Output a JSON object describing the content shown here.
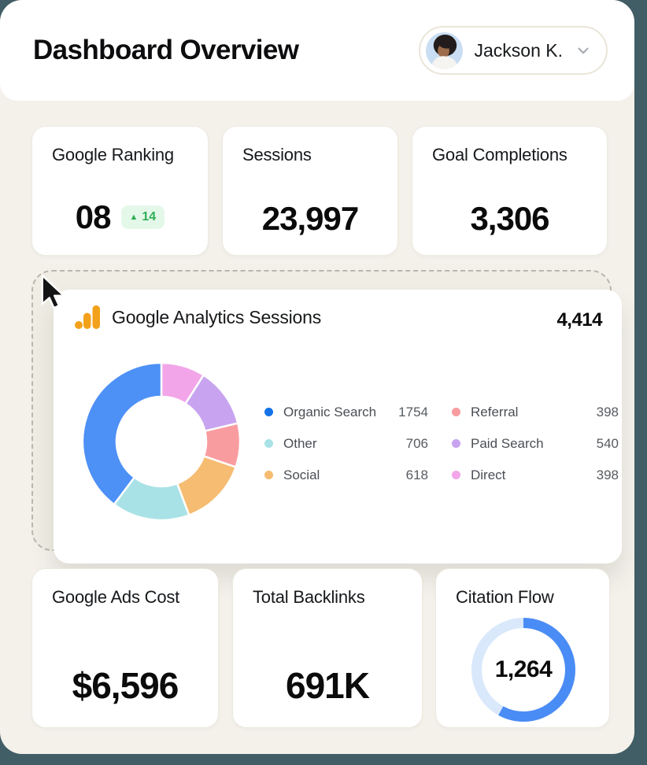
{
  "window": {
    "backdrop_color": "#415D66",
    "panel_bg": "#F3F1EA",
    "header_bg": "#FFFFFF"
  },
  "header": {
    "title": "Dashboard Overview",
    "user": {
      "name": "Jackson K."
    }
  },
  "stats": [
    {
      "label": "Google Ranking",
      "value": "08",
      "delta": {
        "direction": "up",
        "value": "14",
        "text_color": "#2FAE54",
        "bg_color": "#E4F8EA"
      }
    },
    {
      "label": "Sessions",
      "value": "23,997"
    },
    {
      "label": "Goal Completions",
      "value": "3,306"
    }
  ],
  "analytics_card": {
    "icon": "google-analytics-icon",
    "icon_color": "#F3A11B",
    "title": "Google Analytics Sessions",
    "total": "4,414"
  },
  "chart_data": [
    {
      "type": "pie",
      "subtype": "donut",
      "title": "Google Analytics Sessions",
      "total": 4414,
      "total_label": "4,414",
      "segments": [
        {
          "label": "Organic Search",
          "value": 1754,
          "color": "#4D90F6",
          "dot_color": "#1473E6"
        },
        {
          "label": "Other",
          "value": 706,
          "color": "#A9E2E6",
          "dot_color": "#A9E2E6"
        },
        {
          "label": "Social",
          "value": 618,
          "color": "#F6BC72",
          "dot_color": "#F6BC72"
        },
        {
          "label": "Referral",
          "value": 398,
          "color": "#F99CA0",
          "dot_color": "#F99CA0"
        },
        {
          "label": "Paid Search",
          "value": 540,
          "color": "#C8A4F0",
          "dot_color": "#C8A4F0"
        },
        {
          "label": "Direct",
          "value": 398,
          "color": "#F2A6E9",
          "dot_color": "#F2A6E9"
        }
      ],
      "draw_order_clockwise_from_top": [
        5,
        4,
        3,
        2,
        1,
        0
      ],
      "legend_columns": [
        [
          0,
          1,
          2
        ],
        [
          3,
          4,
          5
        ]
      ],
      "legend_position": "right",
      "inner_radius_ratio": 0.57,
      "segment_gap_color": "#FFFFFF"
    },
    {
      "type": "donut-progress",
      "title": "Citation Flow",
      "value": 1264,
      "value_label": "1,264",
      "progress_pct": 58,
      "arc_color": "#4A8CF5",
      "track_color": "#D9E8FB",
      "start_angle": "top",
      "direction": "clockwise"
    }
  ],
  "bottom_stats": [
    {
      "label": "Google Ads Cost",
      "value": "$6,596"
    },
    {
      "label": "Total Backlinks",
      "value": "691K"
    },
    {
      "label": "Citation Flow",
      "value": "1,264"
    }
  ],
  "cursor": {
    "present": true,
    "location": "analytics-card-top-left-corner"
  }
}
